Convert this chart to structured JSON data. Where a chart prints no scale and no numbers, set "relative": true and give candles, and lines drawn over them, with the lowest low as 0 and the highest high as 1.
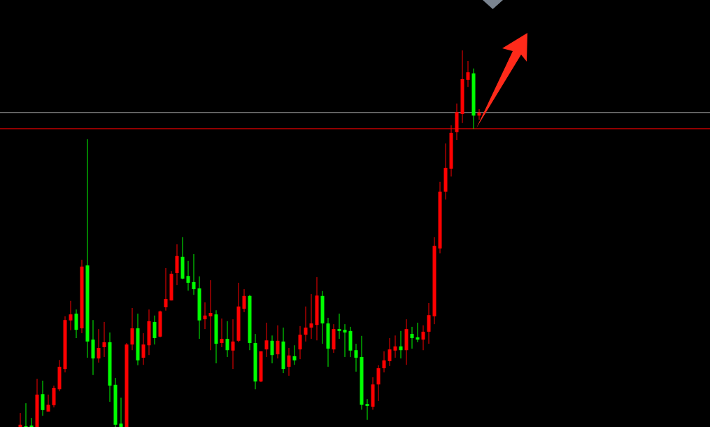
{
  "chart_data": {
    "type": "candlestick",
    "relative": true,
    "categories": [
      null,
      null,
      null,
      null,
      null,
      null,
      null,
      null,
      null,
      null,
      null,
      null,
      null,
      null,
      null,
      null,
      null,
      null,
      null,
      null,
      null,
      null,
      null,
      null,
      null,
      null,
      null,
      null,
      null,
      null,
      null,
      null,
      null,
      null,
      null,
      null,
      null,
      null,
      null,
      null,
      null,
      null,
      null,
      null,
      null,
      null,
      null,
      null,
      null,
      null,
      null,
      null,
      null,
      null,
      null,
      null,
      null,
      null,
      null,
      null,
      null,
      null,
      null,
      null,
      null,
      null,
      null,
      null,
      null,
      null,
      null,
      null,
      null,
      null,
      null,
      null,
      null,
      null,
      null,
      null,
      null,
      null,
      null
    ],
    "ohlc": [
      [
        0,
        0.037,
        0,
        0.006
      ],
      [
        0.002,
        0.063,
        0,
        0
      ],
      [
        0.004,
        0.024,
        0,
        0
      ],
      [
        0,
        0.128,
        0,
        0.086
      ],
      [
        0.087,
        0.123,
        0.03,
        0.045
      ],
      [
        0.041,
        0.086,
        0.041,
        0.059
      ],
      [
        0.058,
        0.11,
        0.052,
        0.104
      ],
      [
        0.1,
        0.178,
        0.095,
        0.16
      ],
      [
        0.154,
        0.294,
        0.145,
        0.284
      ],
      [
        0.283,
        0.335,
        0.257,
        0.299
      ],
      [
        0.301,
        0.312,
        0.236,
        0.258
      ],
      [
        0.262,
        0.444,
        0.249,
        0.426
      ],
      [
        0.429,
        0.764,
        0.184,
        0.227
      ],
      [
        0.232,
        0.284,
        0.138,
        0.182
      ],
      [
        0.182,
        0.26,
        0.171,
        0.21
      ],
      [
        0.212,
        0.279,
        0.186,
        0.225
      ],
      [
        0.225,
        0.251,
        0.067,
        0.11
      ],
      [
        0.112,
        0.13,
        0,
        0.006
      ],
      [
        0.009,
        0.078,
        0,
        0
      ],
      [
        0,
        0.223,
        0,
        0.219
      ],
      [
        0.219,
        0.316,
        0.204,
        0.262
      ],
      [
        0.262,
        0.301,
        0.164,
        0.177
      ],
      [
        0.184,
        0.249,
        0.165,
        0.219
      ],
      [
        0.217,
        0.312,
        0.191,
        0.281
      ],
      [
        0.279,
        0.296,
        0.219,
        0.236
      ],
      [
        0.24,
        0.309,
        0.238,
        0.307
      ],
      [
        0.318,
        0.422,
        0.309,
        0.34
      ],
      [
        0.336,
        0.414,
        0.336,
        0.407
      ],
      [
        0.409,
        0.485,
        0.377,
        0.454
      ],
      [
        0.452,
        0.504,
        0.392,
        0.394
      ],
      [
        0.401,
        0.441,
        0.362,
        0.383
      ],
      [
        0.385,
        0.459,
        0.351,
        0.366
      ],
      [
        0.368,
        0.4,
        0.234,
        0.283
      ],
      [
        0.286,
        0.331,
        0.26,
        0.296
      ],
      [
        0.294,
        0.39,
        0.204,
        0.303
      ],
      [
        0.299,
        0.31,
        0.169,
        0.221
      ],
      [
        0.223,
        0.288,
        0.212,
        0.234
      ],
      [
        0.234,
        0.281,
        0.186,
        0.204
      ],
      [
        0.203,
        0.286,
        0.154,
        0.227
      ],
      [
        0.229,
        0.383,
        0.225,
        0.32
      ],
      [
        0.314,
        0.366,
        0.305,
        0.348
      ],
      [
        0.348,
        0.351,
        0.204,
        0.223
      ],
      [
        0.223,
        0.247,
        0.1,
        0.121
      ],
      [
        0.121,
        0.201,
        0.119,
        0.201
      ],
      [
        0.206,
        0.277,
        0.186,
        0.23
      ],
      [
        0.229,
        0.243,
        0.169,
        0.191
      ],
      [
        0.193,
        0.27,
        0.182,
        0.229
      ],
      [
        0.227,
        0.264,
        0.143,
        0.154
      ],
      [
        0.16,
        0.21,
        0.136,
        0.19
      ],
      [
        0.188,
        0.217,
        0.165,
        0.177
      ],
      [
        0.206,
        0.268,
        0.18,
        0.245
      ],
      [
        0.245,
        0.32,
        0.227,
        0.264
      ],
      [
        0.264,
        0.353,
        0.234,
        0.275
      ],
      [
        0.271,
        0.398,
        0.23,
        0.349
      ],
      [
        0.348,
        0.361,
        0.221,
        0.275
      ],
      [
        0.275,
        0.29,
        0.16,
        0.208
      ],
      [
        0.206,
        0.273,
        0.197,
        0.26
      ],
      [
        0.26,
        0.301,
        0.234,
        0.255
      ],
      [
        0.258,
        0.273,
        0.186,
        0.251
      ],
      [
        0.255,
        0.266,
        0.186,
        0.203
      ],
      [
        0.204,
        0.221,
        0.147,
        0.184
      ],
      [
        0.186,
        0.242,
        0.046,
        0.059
      ],
      [
        0.061,
        0.074,
        0.019,
        0.056
      ],
      [
        0.054,
        0.132,
        0.046,
        0.113
      ],
      [
        0.113,
        0.164,
        0.069,
        0.156
      ],
      [
        0.156,
        0.201,
        0.145,
        0.177
      ],
      [
        0.175,
        0.236,
        0.162,
        0.206
      ],
      [
        0.203,
        0.243,
        0.184,
        0.214
      ],
      [
        0.214,
        0.255,
        0.182,
        0.204
      ],
      [
        0.204,
        0.286,
        0.165,
        0.26
      ],
      [
        0.247,
        0.266,
        0.208,
        0.236
      ],
      [
        0.238,
        0.277,
        0.225,
        0.232
      ],
      [
        0.232,
        0.27,
        0.204,
        0.253
      ],
      [
        0.253,
        0.329,
        0.221,
        0.297
      ],
      [
        0.294,
        0.504,
        0.273,
        0.481
      ],
      [
        0.474,
        0.651,
        0.461,
        0.625
      ],
      [
        0.625,
        0.753,
        0.604,
        0.688
      ],
      [
        0.686,
        0.801,
        0.665,
        0.781
      ],
      [
        0.783,
        0.859,
        0.762,
        0.836
      ],
      [
        0.831,
        1,
        0.807,
        0.924
      ],
      [
        0.922,
        0.972,
        0.903,
        0.942
      ],
      [
        0.939,
        0.952,
        0.792,
        0.827
      ],
      [
        0.827,
        0.844,
        0.816,
        0.835
      ]
    ],
    "colors": [
      "#ff0000",
      "#00ff00",
      "#00ff00",
      "#ff0000",
      "#00ff00",
      "#ff0000",
      "#ff0000",
      "#ff0000",
      "#ff0000",
      "#ff0000",
      "#00ff00",
      "#ff0000",
      "#00ff00",
      "#00ff00",
      "#ff0000",
      "#ff0000",
      "#00ff00",
      "#00ff00",
      "#00ff00",
      "#ff0000",
      "#ff0000",
      "#00ff00",
      "#ff0000",
      "#ff0000",
      "#00ff00",
      "#ff0000",
      "#ff0000",
      "#ff0000",
      "#ff0000",
      "#00ff00",
      "#00ff00",
      "#00ff00",
      "#00ff00",
      "#ff0000",
      "#ff0000",
      "#00ff00",
      "#ff0000",
      "#00ff00",
      "#ff0000",
      "#ff0000",
      "#ff0000",
      "#00ff00",
      "#00ff00",
      "#ff0000",
      "#ff0000",
      "#00ff00",
      "#ff0000",
      "#00ff00",
      "#ff0000",
      "#00ff00",
      "#ff0000",
      "#ff0000",
      "#ff0000",
      "#ff0000",
      "#00ff00",
      "#00ff00",
      "#ff0000",
      "#00ff00",
      "#00ff00",
      "#00ff00",
      "#00ff00",
      "#00ff00",
      "#00ff00",
      "#ff0000",
      "#ff0000",
      "#ff0000",
      "#ff0000",
      "#ff0000",
      "#00ff00",
      "#ff0000",
      "#00ff00",
      "#00ff00",
      "#ff0000",
      "#ff0000",
      "#ff0000",
      "#ff0000",
      "#ff0000",
      "#ff0000",
      "#ff0000",
      "#ff0000",
      "#ff0000",
      "#00ff00",
      "#ff0000"
    ],
    "ref_lines": [
      {
        "axis": "y",
        "value": 0.835,
        "color": "#9a9a9a"
      },
      {
        "axis": "y",
        "value": 0.792,
        "color": "#ff0000"
      }
    ]
  }
}
